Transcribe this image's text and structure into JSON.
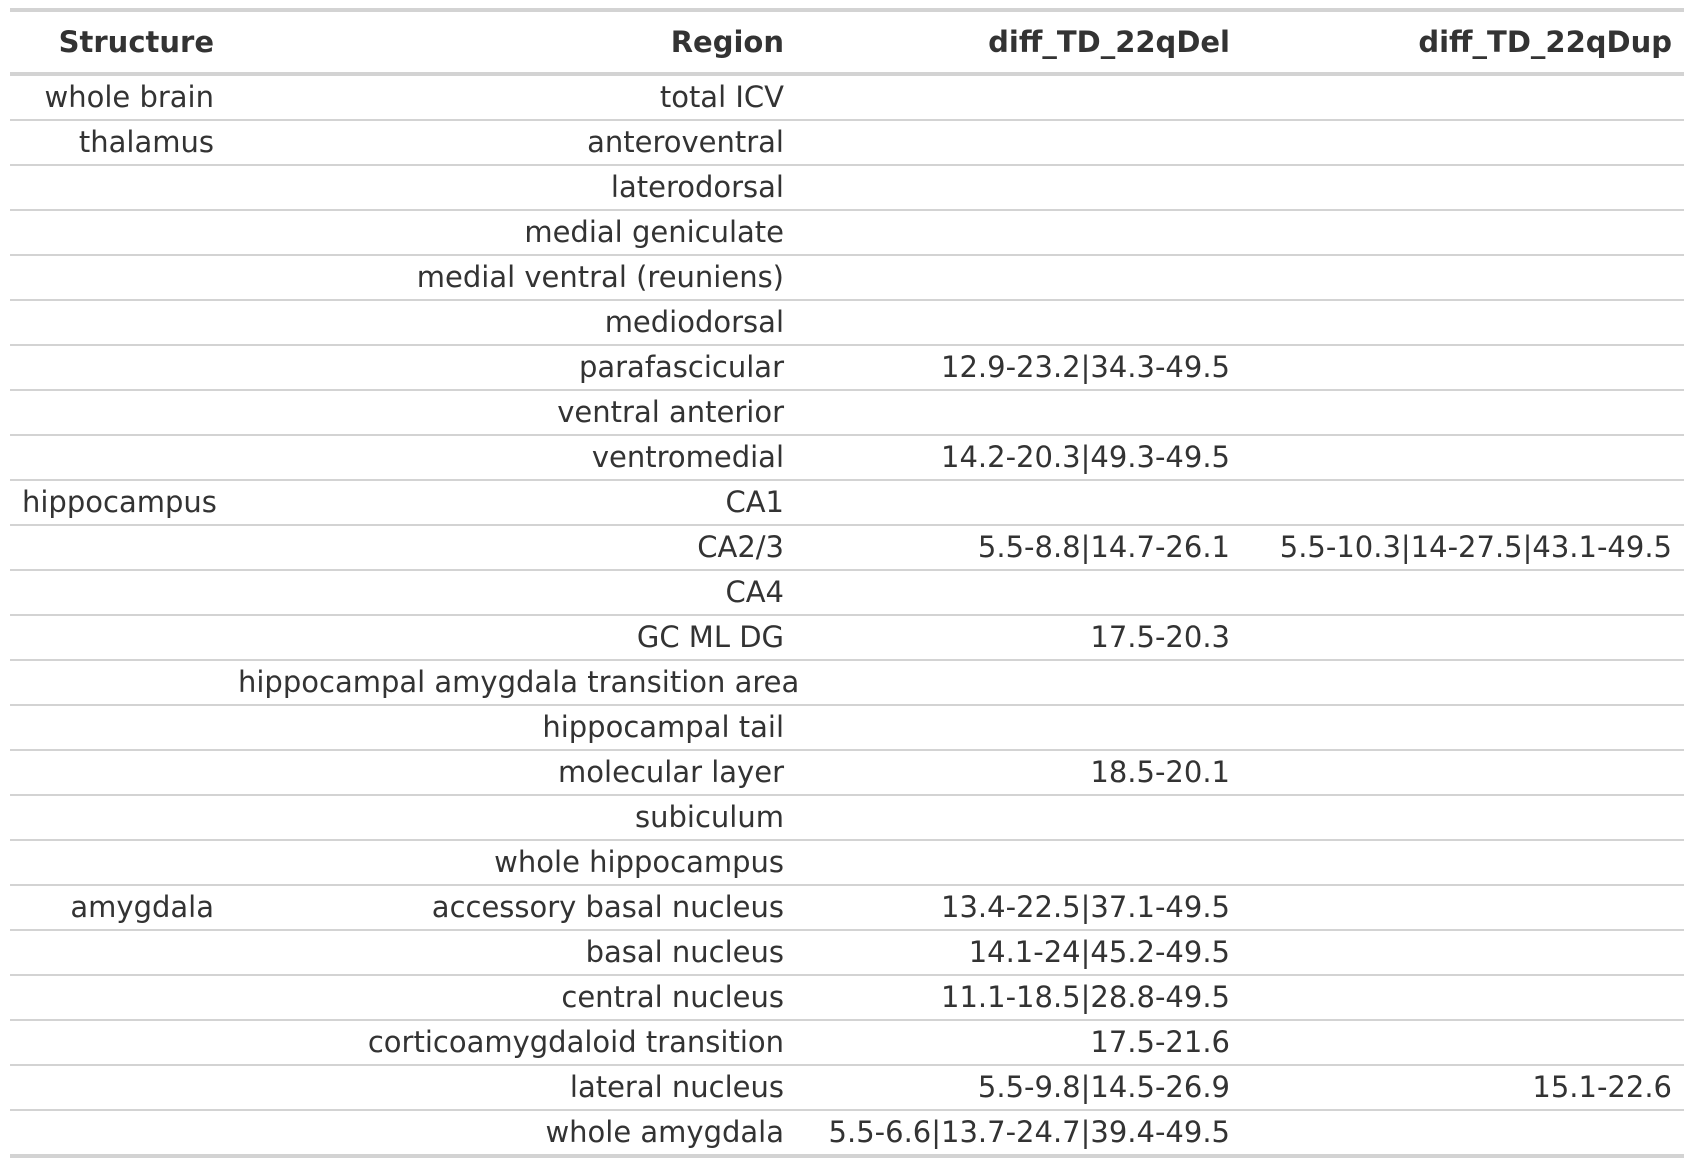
{
  "table": {
    "headers": [
      "Structure",
      "Region",
      "diff_TD_22qDel",
      "diff_TD_22qDup"
    ],
    "rows": [
      [
        "whole brain",
        "total ICV",
        "",
        ""
      ],
      [
        "thalamus",
        "anteroventral",
        "",
        ""
      ],
      [
        "",
        "laterodorsal",
        "",
        ""
      ],
      [
        "",
        "medial geniculate",
        "",
        ""
      ],
      [
        "",
        "medial ventral (reuniens)",
        "",
        ""
      ],
      [
        "",
        "mediodorsal",
        "",
        ""
      ],
      [
        "",
        "parafascicular",
        "12.9-23.2|34.3-49.5",
        ""
      ],
      [
        "",
        "ventral anterior",
        "",
        ""
      ],
      [
        "",
        "ventromedial",
        "14.2-20.3|49.3-49.5",
        ""
      ],
      [
        "hippocampus",
        "CA1",
        "",
        ""
      ],
      [
        "",
        "CA2/3",
        "5.5-8.8|14.7-26.1",
        "5.5-10.3|14-27.5|43.1-49.5"
      ],
      [
        "",
        "CA4",
        "",
        ""
      ],
      [
        "",
        "GC ML DG",
        "17.5-20.3",
        ""
      ],
      [
        "",
        "hippocampal amygdala transition area",
        "",
        ""
      ],
      [
        "",
        "hippocampal tail",
        "",
        ""
      ],
      [
        "",
        "molecular layer",
        "18.5-20.1",
        ""
      ],
      [
        "",
        "subiculum",
        "",
        ""
      ],
      [
        "",
        "whole hippocampus",
        "",
        ""
      ],
      [
        "amygdala",
        "accessory basal nucleus",
        "13.4-22.5|37.1-49.5",
        ""
      ],
      [
        "",
        "basal nucleus",
        "14.1-24|45.2-49.5",
        ""
      ],
      [
        "",
        "central nucleus",
        "11.1-18.5|28.8-49.5",
        ""
      ],
      [
        "",
        "corticoamygdaloid transition",
        "17.5-21.6",
        ""
      ],
      [
        "",
        "lateral nucleus",
        "5.5-9.8|14.5-26.9",
        "15.1-22.6"
      ],
      [
        "",
        "whole amygdala",
        "5.5-6.6|13.7-24.7|39.4-49.5",
        ""
      ]
    ]
  }
}
